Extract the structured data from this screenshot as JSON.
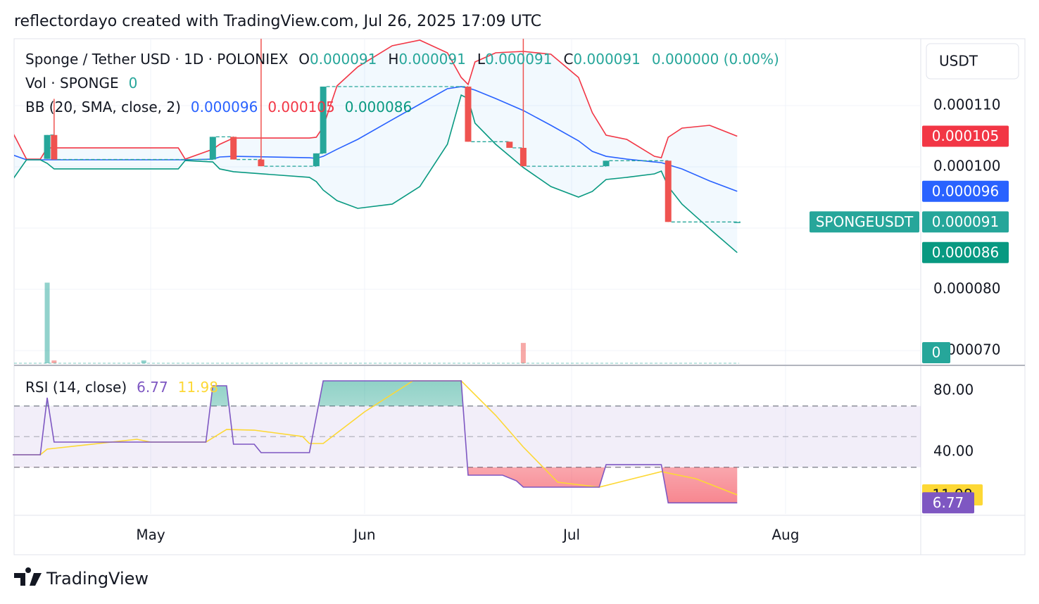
{
  "header": "reflectordayo created with TradingView.com, Jul 26, 2025 17:09 UTC",
  "footer": "TradingView",
  "chart_data": [
    {
      "type": "candlestick",
      "title": "Sponge / Tether USD · 1D · POLONIEX",
      "symbol": "SPONGEUSDT",
      "currency": "USDT",
      "ohlc_labels": [
        "O",
        "H",
        "L",
        "C"
      ],
      "change": "0.000000 (0.00%)",
      "up_color": "#26a69a",
      "down_color": "#ef5350",
      "xlim": [
        101.2,
        232.6
      ],
      "ylim": [
        6.77e-05,
        0.00012092
      ],
      "grid": true,
      "yticks": [
        {
          "value": 0.00011,
          "label": "0.000110"
        },
        {
          "value": 0.0001,
          "label": "0.000100"
        },
        {
          "value": 9e-05,
          "label": "0.000090"
        },
        {
          "value": 8e-05,
          "label": "0.000080"
        },
        {
          "value": 7e-05,
          "label": "0.000070"
        }
      ],
      "x": [
        106,
        107,
        130,
        133,
        137,
        145,
        146,
        167,
        173,
        175,
        187,
        196,
        206
      ],
      "open": [
        0.0001013,
        0.0001052,
        0.0001012,
        0.0001049,
        0.0001012,
        0.0001001,
        0.0001022,
        0.0001131,
        0.0001041,
        0.0001031,
        0.0001001,
        0.000101,
        9.1e-05
      ],
      "high": [
        0.0001052,
        0.0001111,
        0.0001049,
        0.0001049,
        0.0001209,
        0.0001022,
        0.0001131,
        0.0001131,
        0.0001041,
        0.0001209,
        0.000101,
        0.000101,
        9.1e-05
      ],
      "low": [
        0.0001013,
        0.0001012,
        0.0001012,
        0.0001012,
        0.0001001,
        0.0001001,
        0.0001022,
        0.0001041,
        0.0001031,
        0.0001001,
        0.0001001,
        9.1e-05,
        9.1e-05
      ],
      "close": [
        0.0001052,
        0.0001012,
        0.0001049,
        0.0001012,
        0.0001001,
        0.0001022,
        0.0001131,
        0.0001041,
        0.0001031,
        0.0001001,
        0.000101,
        9.1e-05,
        9.1e-05
      ],
      "bb": {
        "title": "BB (20, SMA, close, 2)",
        "colors": {
          "upper": "#f23645",
          "basis": "#2962ff",
          "lower": "#089981"
        },
        "fill": "#2196f3",
        "x": [
          101,
          103,
          105,
          106,
          107,
          117,
          125,
          126,
          130,
          131,
          133,
          144,
          145,
          146,
          148,
          151,
          156,
          160,
          164,
          166,
          167,
          168,
          171,
          175,
          179,
          183,
          185,
          187,
          190,
          194,
          195,
          196,
          198,
          202,
          206
        ],
        "upper": [
          0.00010563,
          0.00010126,
          0.00010126,
          0.0001031,
          0.0001031,
          0.0001031,
          0.0001031,
          0.00010126,
          0.00010287,
          0.00010368,
          0.00010471,
          0.00010471,
          0.00010483,
          0.00010655,
          0.00011322,
          0.00011632,
          0.00011977,
          0.00012069,
          0.00011862,
          0.0001146,
          0.00011345,
          0.00011713,
          0.00011862,
          0.00011885,
          0.00011839,
          0.0001146,
          0.00010885,
          0.00010517,
          0.00010448,
          0.00010172,
          0.00010149,
          0.00010483,
          0.00010632,
          0.00010678,
          0.000105
        ],
        "basis": [
          0.00010195,
          0.00010115,
          0.00010115,
          0.00010115,
          0.00010115,
          0.00010115,
          0.00010115,
          0.00010115,
          0.00010126,
          0.00010161,
          0.00010172,
          0.00010149,
          0.00010138,
          0.00010172,
          0.00010287,
          0.00010448,
          0.0001077,
          0.00011023,
          0.00011276,
          0.0001131,
          0.00011287,
          0.00011253,
          0.00011115,
          0.0001092,
          0.00010678,
          0.00010425,
          0.00010253,
          0.00010172,
          0.00010126,
          0.0001008,
          0.00010069,
          0.00010034,
          9.966e-05,
          9.77e-05,
          9.6e-05
        ],
        "lower": [
          9.793e-05,
          0.00010115,
          0.00010115,
          0.00010057,
          9.966e-05,
          9.966e-05,
          9.966e-05,
          0.00010103,
          0.0001008,
          9.966e-05,
          9.92e-05,
          9.828e-05,
          9.759e-05,
          9.621e-05,
          9.448e-05,
          9.322e-05,
          9.391e-05,
          9.678e-05,
          0.00010368,
          0.00011172,
          0.00011115,
          0.00010713,
          0.00010368,
          9.989e-05,
          9.678e-05,
          9.506e-05,
          9.598e-05,
          9.793e-05,
          9.828e-05,
          9.885e-05,
          9.931e-05,
          9.678e-05,
          9.391e-05,
          8.989e-05,
          8.6e-05
        ]
      },
      "volume": {
        "title": "Vol · SPONGE",
        "x": [
          106,
          107,
          120,
          175,
          206
        ],
        "values": [
          1150,
          40,
          40,
          290,
          0
        ],
        "colors": [
          "#26a69a",
          "#ef5350",
          "#26a69a",
          "#ef5350",
          "#26a69a"
        ],
        "ylim": [
          0,
          4630
        ]
      }
    },
    {
      "type": "line",
      "title": "RSI (14, close)",
      "xlim": [
        101.2,
        232.6
      ],
      "ylim": [
        -0.46,
        96.1
      ],
      "xticks": [
        {
          "value": 121,
          "label": "May"
        },
        {
          "value": 152,
          "label": "Jun"
        },
        {
          "value": 182,
          "label": "Jul"
        },
        {
          "value": 213,
          "label": "Aug"
        }
      ],
      "yticks": [
        {
          "value": 80,
          "label": "80.00"
        },
        {
          "value": 40,
          "label": "40.00"
        }
      ],
      "levels": [
        70,
        50,
        30
      ],
      "band_color": "#7e57c2",
      "overbought_color": "#089981",
      "oversold_color": "#f23645",
      "series": [
        {
          "color": "#7e57c2",
          "x": [
            101,
            105,
            106,
            107,
            129,
            130,
            132,
            133,
            136,
            137,
            144,
            146,
            166,
            167,
            172,
            174,
            175,
            186,
            187,
            195,
            196,
            206
          ],
          "values": [
            38.16,
            38.16,
            75.4,
            46.44,
            46.44,
            83.22,
            83.22,
            45.06,
            45.06,
            39.54,
            39.54,
            86.44,
            86.44,
            24.83,
            24.83,
            21.15,
            17.01,
            17.01,
            31.72,
            31.72,
            6.77,
            6.77
          ]
        },
        {
          "color": "#fdd835",
          "x": [
            101,
            105,
            106,
            119,
            121,
            129,
            132,
            136,
            143,
            144,
            146,
            152,
            159,
            166,
            171,
            175,
            180,
            186,
            195,
            200,
            206
          ],
          "values": [
            38.16,
            38.16,
            41.84,
            48.28,
            46.44,
            46.44,
            54.71,
            54.25,
            50.11,
            45.52,
            45.52,
            66.21,
            86.44,
            86.44,
            63.91,
            43.22,
            20.23,
            17.01,
            27.13,
            22.53,
            11.98
          ]
        }
      ]
    }
  ]
}
